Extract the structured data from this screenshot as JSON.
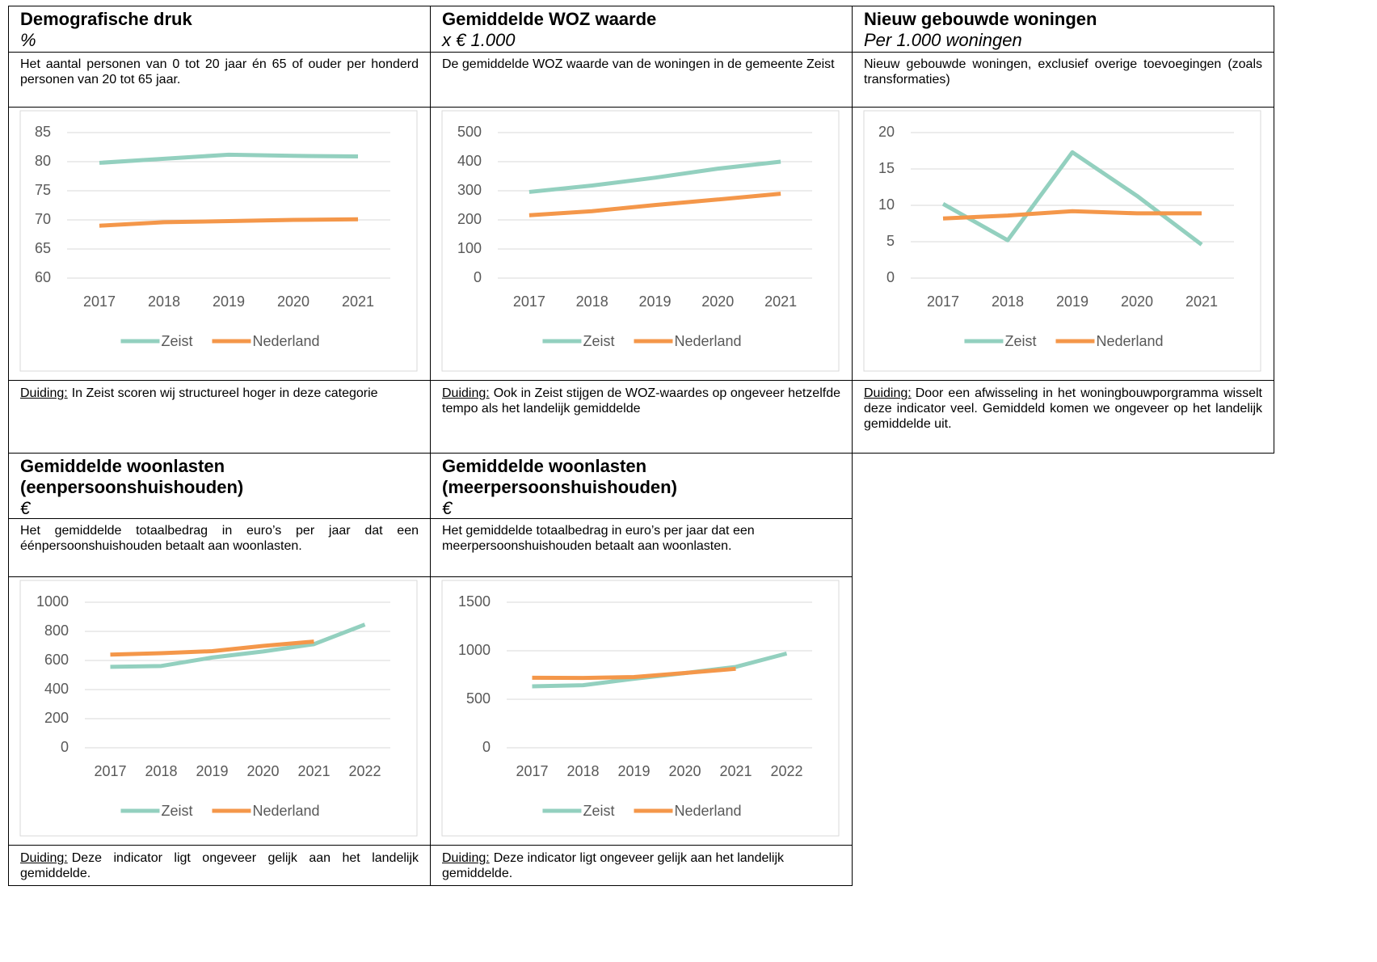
{
  "panels": [
    {
      "title": "Demografische druk",
      "unit": "%",
      "description": "Het aantal personen van 0 tot 20 jaar én 65 of ouder per honderd personen van 20 tot 65 jaar.",
      "note_label": "Duiding:",
      "note": "In Zeist scoren wij structureel hoger in deze categorie"
    },
    {
      "title": "Gemiddelde WOZ waarde",
      "unit": "x € 1.000",
      "description": "De gemiddelde WOZ waarde van de woningen in de gemeente Zeist",
      "note_label": "Duiding:",
      "note": "Ook in Zeist stijgen de WOZ-waardes op ongeveer hetzelfde tempo als het landelijk gemiddelde"
    },
    {
      "title": "Nieuw gebouwde woningen",
      "unit": "Per 1.000 woningen",
      "description": "Nieuw gebouwde woningen, exclusief overige toevoegingen (zoals transformaties)",
      "note_label": "Duiding:",
      "note": "Door een afwisseling in het woningbouwporgramma wisselt deze indicator veel. Gemiddeld komen we ongeveer op het landelijk gemiddelde uit."
    },
    {
      "title": "Gemiddelde woonlasten (eenpersoonshuishouden)",
      "unit": "€",
      "description": "Het gemiddelde totaalbedrag in euro’s per jaar dat een éénpersoonshuishouden betaalt aan woonlasten.",
      "note_label": "Duiding:",
      "note": "Deze indicator ligt ongeveer gelijk aan het landelijk gemiddelde."
    },
    {
      "title": "Gemiddelde woonlasten (meerpersoonshuishouden)",
      "unit": "€",
      "description": "Het gemiddelde totaalbedrag in euro’s per jaar dat een meerpersoonshuishouden betaalt aan woonlasten.",
      "note_label": "Duiding:",
      "note": "Deze indicator ligt ongeveer gelijk aan het landelijk gemiddelde."
    }
  ],
  "chart_data": [
    {
      "type": "line",
      "categories": [
        "2017",
        "2018",
        "2019",
        "2020",
        "2021"
      ],
      "ylim": [
        60,
        85
      ],
      "yticks": [
        60,
        65,
        70,
        75,
        80,
        85
      ],
      "grid": true,
      "legend": "bottom",
      "series": [
        {
          "name": "Zeist",
          "color": "#93d0bf",
          "values": [
            79.8,
            80.5,
            81.2,
            81.0,
            80.9
          ]
        },
        {
          "name": "Nederland",
          "color": "#f4974a",
          "values": [
            69.0,
            69.6,
            69.8,
            70.0,
            70.1
          ]
        }
      ]
    },
    {
      "type": "line",
      "categories": [
        "2017",
        "2018",
        "2019",
        "2020",
        "2021"
      ],
      "ylim": [
        0,
        500
      ],
      "yticks": [
        0,
        100,
        200,
        300,
        400,
        500
      ],
      "grid": true,
      "legend": "bottom",
      "series": [
        {
          "name": "Zeist",
          "color": "#93d0bf",
          "values": [
            296,
            318,
            345,
            376,
            400
          ]
        },
        {
          "name": "Nederland",
          "color": "#f4974a",
          "values": [
            216,
            230,
            251,
            270,
            290
          ]
        }
      ]
    },
    {
      "type": "line",
      "categories": [
        "2017",
        "2018",
        "2019",
        "2020",
        "2021"
      ],
      "ylim": [
        0,
        20
      ],
      "yticks": [
        0,
        5,
        10,
        15,
        20
      ],
      "grid": true,
      "legend": "bottom",
      "series": [
        {
          "name": "Zeist",
          "color": "#93d0bf",
          "values": [
            10.2,
            5.2,
            17.3,
            11.3,
            4.6
          ]
        },
        {
          "name": "Nederland",
          "color": "#f4974a",
          "values": [
            8.2,
            8.6,
            9.2,
            8.9,
            8.9
          ]
        }
      ]
    },
    {
      "type": "line",
      "categories": [
        "2017",
        "2018",
        "2019",
        "2020",
        "2021",
        "2022"
      ],
      "ylim": [
        0,
        1000
      ],
      "yticks": [
        0,
        200,
        400,
        600,
        800,
        1000
      ],
      "grid": true,
      "legend": "bottom",
      "series": [
        {
          "name": "Zeist",
          "color": "#93d0bf",
          "values": [
            556,
            562,
            620,
            662,
            712,
            847
          ]
        },
        {
          "name": "Nederland",
          "color": "#f4974a",
          "values": [
            640,
            650,
            664,
            700,
            730,
            null
          ]
        }
      ]
    },
    {
      "type": "line",
      "categories": [
        "2017",
        "2018",
        "2019",
        "2020",
        "2021",
        "2022"
      ],
      "ylim": [
        0,
        1500
      ],
      "yticks": [
        0,
        500,
        1000,
        1500
      ],
      "grid": true,
      "legend": "bottom",
      "series": [
        {
          "name": "Zeist",
          "color": "#93d0bf",
          "values": [
            633,
            645,
            711,
            770,
            834,
            972
          ]
        },
        {
          "name": "Nederland",
          "color": "#f4974a",
          "values": [
            722,
            720,
            729,
            771,
            814,
            null
          ]
        }
      ]
    }
  ]
}
